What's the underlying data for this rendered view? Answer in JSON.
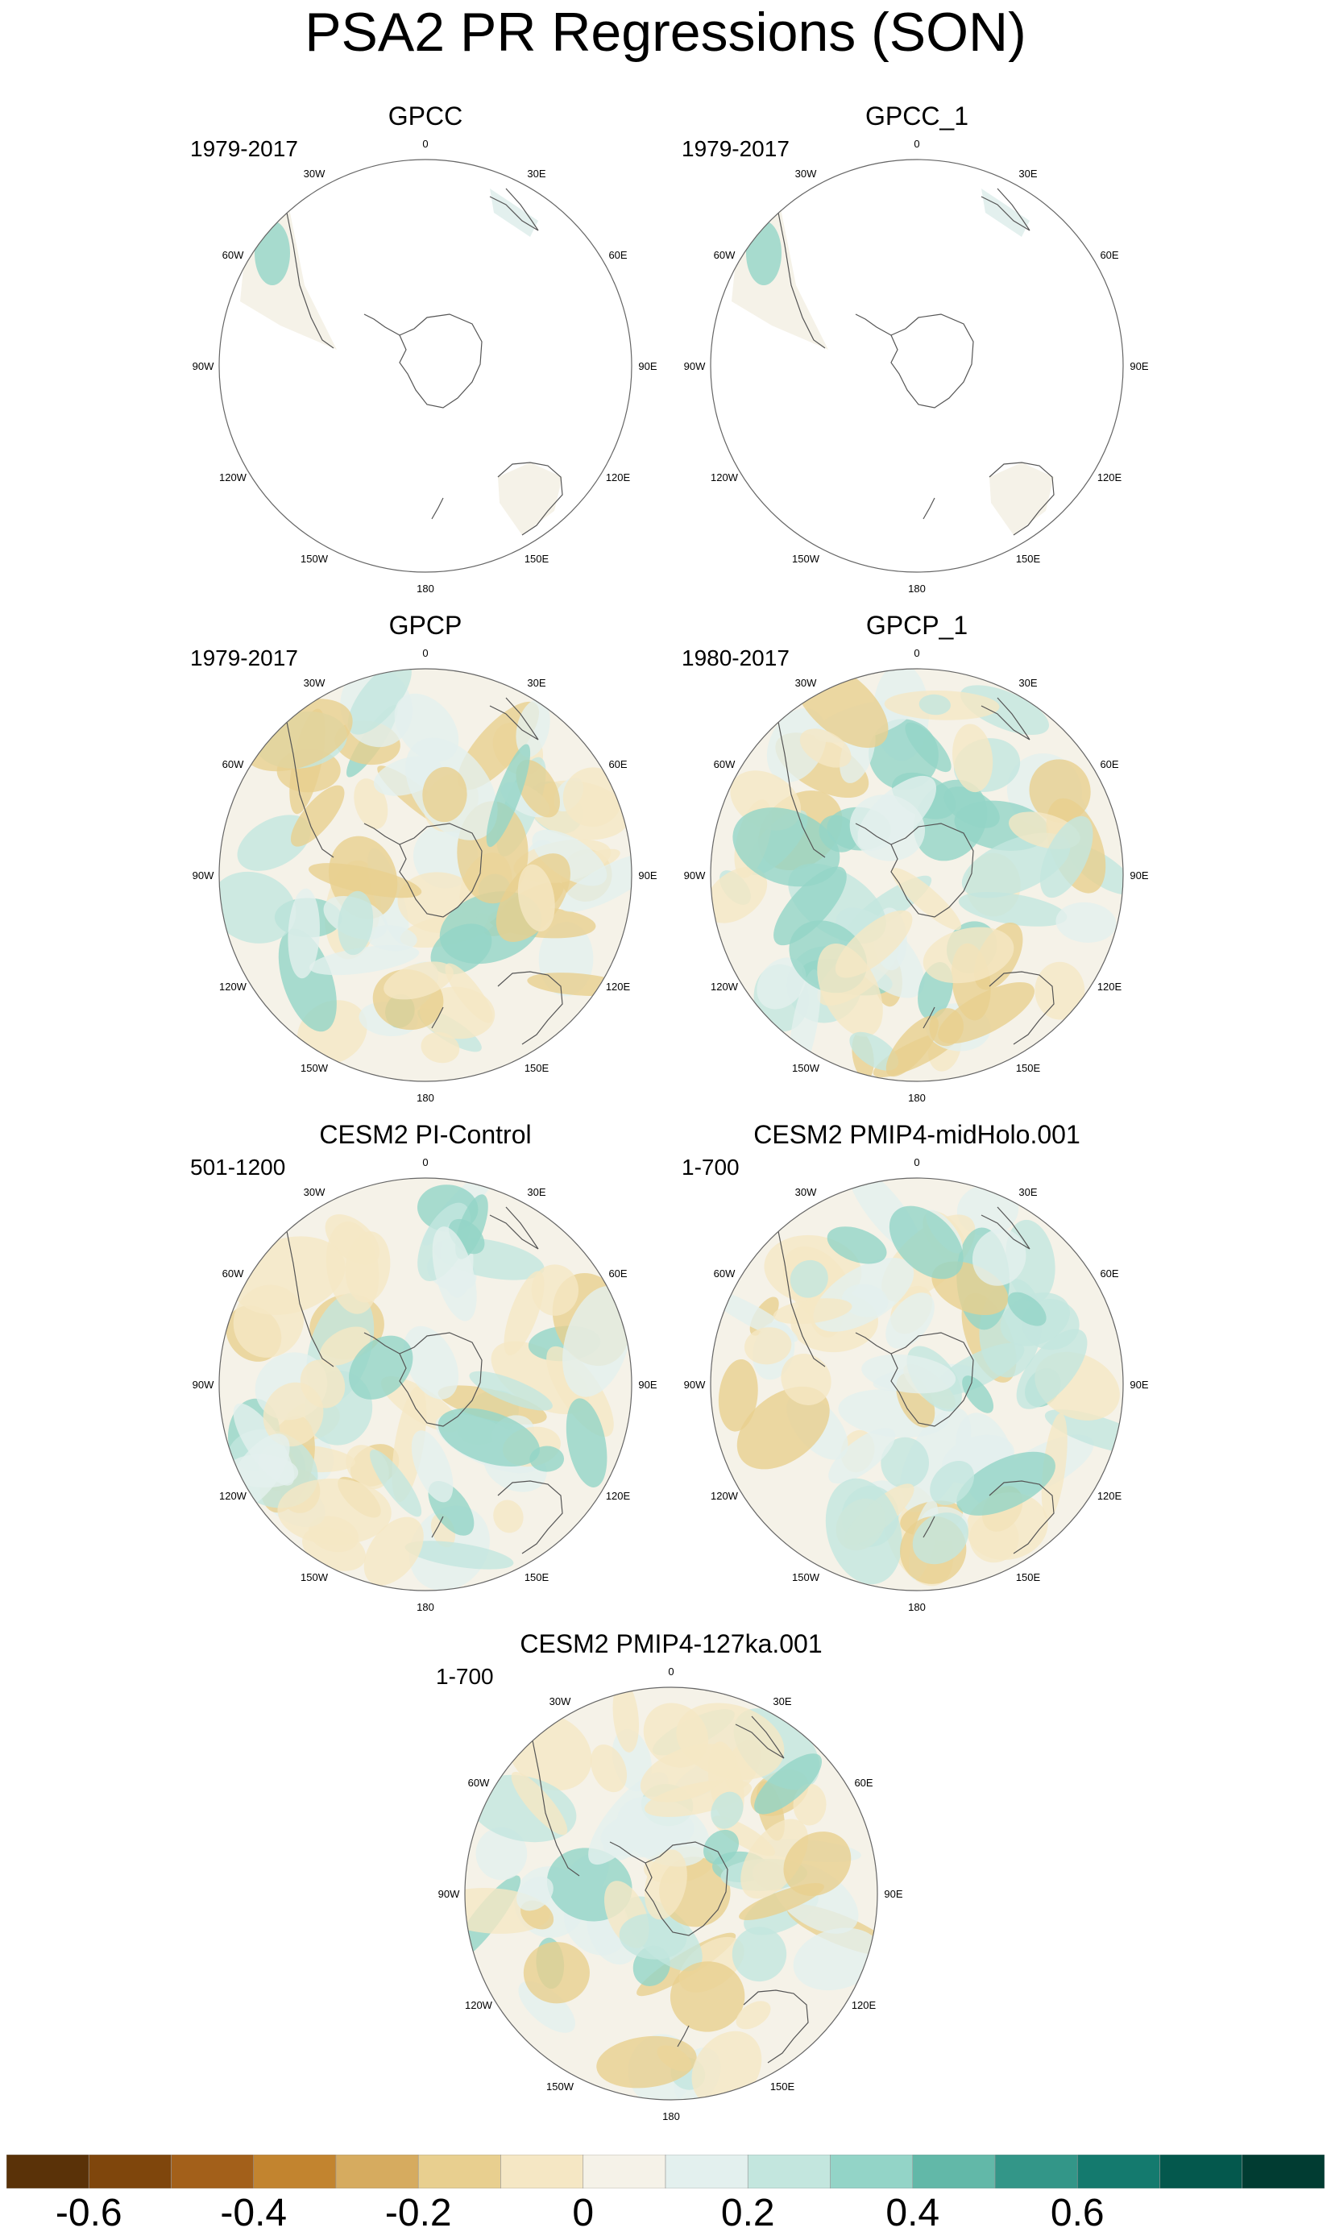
{
  "title": "PSA2 PR Regressions (SON)",
  "longitude_labels": [
    "0",
    "30E",
    "60E",
    "90E",
    "120E",
    "150E",
    "180",
    "150W",
    "120W",
    "90W",
    "60W",
    "30W"
  ],
  "panels": [
    {
      "id": "gpcc",
      "title": "GPCC",
      "years": "1979-2017",
      "coverage": "land"
    },
    {
      "id": "gpcc-1",
      "title": "GPCC_1",
      "years": "1979-2017",
      "coverage": "land"
    },
    {
      "id": "gpcp",
      "title": "GPCP",
      "years": "1979-2017",
      "coverage": "global"
    },
    {
      "id": "gpcp-1",
      "title": "GPCP_1",
      "years": "1980-2017",
      "coverage": "global"
    },
    {
      "id": "cesm2-pi-control",
      "title": "CESM2 PI-Control",
      "years": "501-1200",
      "coverage": "global"
    },
    {
      "id": "cesm2-midholo",
      "title": "CESM2 PMIP4-midHolo.001",
      "years": "1-700",
      "coverage": "global"
    },
    {
      "id": "cesm2-127ka",
      "title": "CESM2 PMIP4-127ka.001",
      "years": "1-700",
      "coverage": "global"
    }
  ],
  "colorbar": {
    "colors": [
      "#5a3208",
      "#7f460c",
      "#a3601a",
      "#c2842f",
      "#d6ab5f",
      "#e8cf8f",
      "#f5e7c4",
      "#f5f2e8",
      "#e3f0ee",
      "#c3e6de",
      "#93d4c7",
      "#62b8a8",
      "#339688",
      "#147a6e",
      "#04584d",
      "#013c32"
    ],
    "tick_labels": [
      "-0.6",
      "-0.4",
      "-0.2",
      "0",
      "0.2",
      "0.4",
      "0.6"
    ]
  }
}
